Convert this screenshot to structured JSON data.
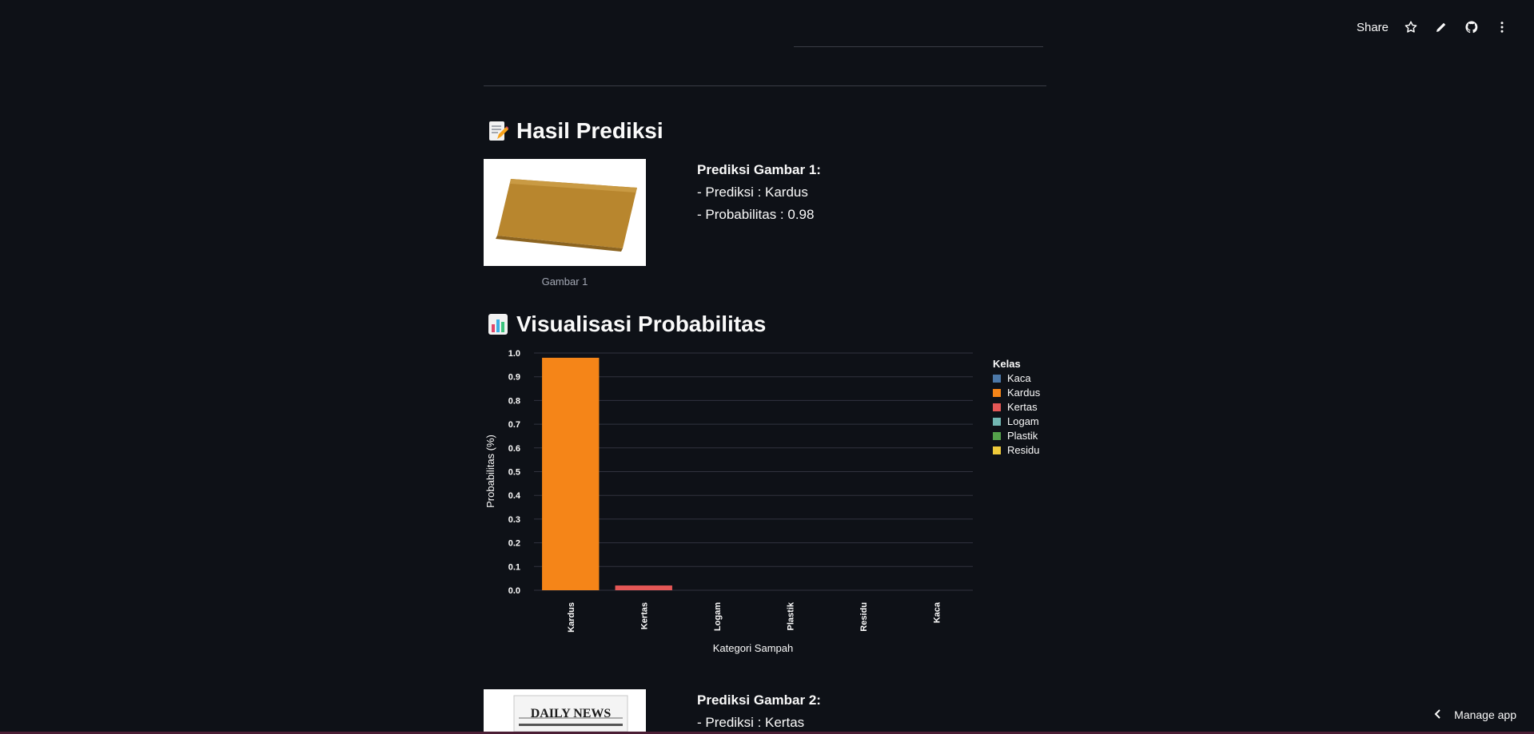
{
  "toolbar": {
    "share_label": "Share"
  },
  "section1": {
    "title": "Hasil Prediksi",
    "emoji_icon": "memo-icon"
  },
  "prediction1": {
    "caption": "Gambar 1",
    "title": "Prediksi Gambar 1:",
    "label_line": "- Prediksi : Kardus",
    "prob_line": "- Probabilitas : 0.98",
    "image_icon": "cardboard-image"
  },
  "section2": {
    "title": "Visualisasi Probabilitas",
    "emoji_icon": "bar-chart-icon"
  },
  "chart_data": {
    "type": "bar",
    "categories": [
      "Kardus",
      "Kertas",
      "Logam",
      "Plastik",
      "Residu",
      "Kaca"
    ],
    "values": [
      0.98,
      0.02,
      0.0,
      0.0,
      0.0,
      0.0
    ],
    "bar_series": [
      "Kardus",
      "Kertas",
      "Logam",
      "Plastik",
      "Residu",
      "Kaca"
    ],
    "xlabel": "Kategori Sampah",
    "ylabel": "Probabilitas (%)",
    "ylim": [
      0,
      1.0
    ],
    "yticks": [
      "0.0",
      "0.1",
      "0.2",
      "0.3",
      "0.4",
      "0.5",
      "0.6",
      "0.7",
      "0.8",
      "0.9",
      "1.0"
    ],
    "grid": true,
    "legend": {
      "title": "Kelas",
      "placement": "right",
      "entries": [
        {
          "name": "Kaca",
          "color": "#4c78a8"
        },
        {
          "name": "Kardus",
          "color": "#f58518"
        },
        {
          "name": "Kertas",
          "color": "#e45756"
        },
        {
          "name": "Logam",
          "color": "#72b7b2"
        },
        {
          "name": "Plastik",
          "color": "#54a24b"
        },
        {
          "name": "Residu",
          "color": "#eeca3b"
        }
      ]
    }
  },
  "prediction2": {
    "title": "Prediksi Gambar 2:",
    "label_line": "- Prediksi : Kertas",
    "image_text": "DAILY NEWS"
  },
  "footer": {
    "manage_label": "Manage app"
  },
  "colors": {
    "background": "#0e1117",
    "text": "#fafafa",
    "divider": "#3a3d45"
  }
}
